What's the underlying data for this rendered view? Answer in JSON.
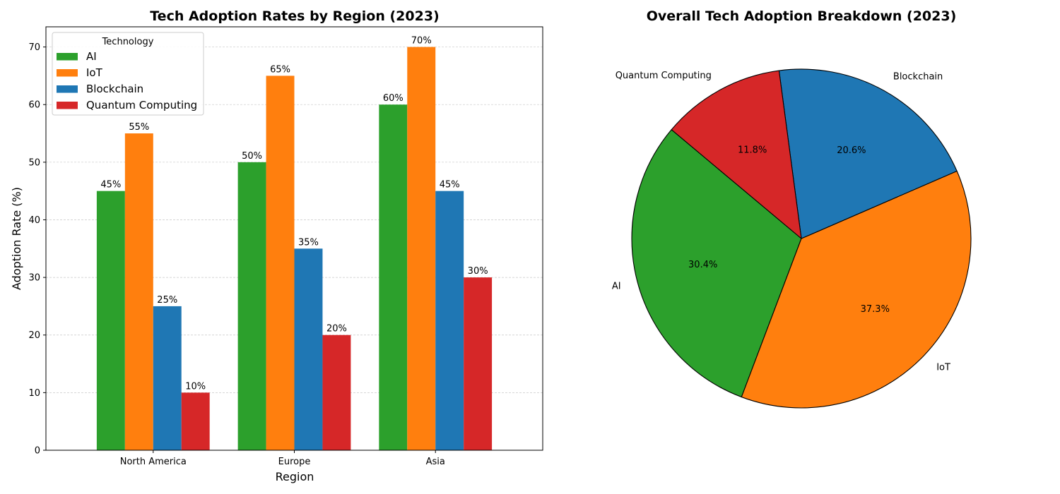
{
  "chart_data": [
    {
      "type": "bar",
      "title": "Tech Adoption Rates by Region (2023)",
      "xlabel": "Region",
      "ylabel": "Adoption Rate (%)",
      "categories": [
        "North America",
        "Europe",
        "Asia"
      ],
      "series": [
        {
          "name": "AI",
          "values": [
            45,
            50,
            60
          ],
          "color": "#2ca02c"
        },
        {
          "name": "IoT",
          "values": [
            55,
            65,
            70
          ],
          "color": "#ff7f0e"
        },
        {
          "name": "Blockchain",
          "values": [
            25,
            35,
            45
          ],
          "color": "#1f77b4"
        },
        {
          "name": "Quantum Computing",
          "values": [
            10,
            20,
            30
          ],
          "color": "#d62728"
        }
      ],
      "data_labels": [
        [
          "45%",
          "50%",
          "60%"
        ],
        [
          "55%",
          "65%",
          "70%"
        ],
        [
          "25%",
          "35%",
          "45%"
        ],
        [
          "10%",
          "20%",
          "30%"
        ]
      ],
      "ylim": [
        0,
        73.5
      ],
      "yticks": [
        "0",
        "10",
        "20",
        "30",
        "40",
        "50",
        "60",
        "70"
      ],
      "grid": "y-dashed",
      "legend": {
        "title": "Technology",
        "placement": "top-left"
      }
    },
    {
      "type": "pie",
      "title": "Overall Tech Adoption Breakdown (2023)",
      "slices": [
        {
          "label": "AI",
          "value": 30.4,
          "pct_label": "30.4%",
          "color": "#2ca02c"
        },
        {
          "label": "IoT",
          "value": 37.3,
          "pct_label": "37.3%",
          "color": "#ff7f0e"
        },
        {
          "label": "Blockchain",
          "value": 20.6,
          "pct_label": "20.6%",
          "color": "#1f77b4"
        },
        {
          "label": "Quantum Computing",
          "value": 11.8,
          "pct_label": "11.8%",
          "color": "#d62728"
        }
      ],
      "start_angle_deg": 140,
      "direction": "counterclockwise",
      "edgecolor": "#000000"
    }
  ]
}
